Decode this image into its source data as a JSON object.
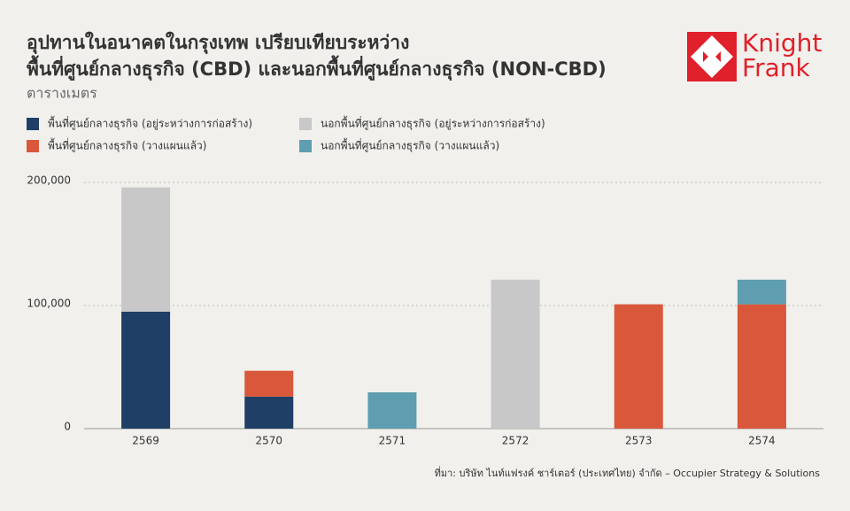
{
  "chart_data": {
    "type": "stacked_bar",
    "title": [
      "อุปทานในอนาคตในกรุงเทพ เปรียบเทียบระหว่าง",
      "พื้นที่ศูนย์กลางธุรกิจ (CBD) และนอกพื้นที่ศูนย์กลางธุรกิจ (NON-CBD)"
    ],
    "subtitle": "ตารางเมตร",
    "brand": [
      "Knight",
      "Frank"
    ],
    "source": "ที่มา: บริษัท ไนท์แฟรงค์ ชาร์เตอร์ (ประเทศไทย) จำกัด – Occupier Strategy & Solutions",
    "categories": [
      "2569",
      "2570",
      "2571",
      "2572",
      "2573",
      "2574"
    ],
    "series": [
      {
        "name": "พื้นที่ศูนย์กลางธุรกิจ (อยู่ระหว่างการก่อสร้าง)",
        "color": "#1f3f66",
        "values": [
          95000,
          26000,
          0,
          0,
          0,
          0
        ]
      },
      {
        "name": "นอกพื้นที่ศูนย์กลางธุรกิจ (อยู่ระหว่างการก่อสร้าง)",
        "color": "#c8c8c8",
        "values": [
          101000,
          0,
          0,
          121000,
          0,
          0
        ]
      },
      {
        "name": "พื้นที่ศูนย์กลางธุรกิจ (วางแผนแล้ว)",
        "color": "#d9573b",
        "values": [
          0,
          21000,
          0,
          0,
          101000,
          101000
        ]
      },
      {
        "name": "นอกพื้นที่ศูนย์กลางธุรกิจ (วางแผนแล้ว)",
        "color": "#5f9eb0",
        "values": [
          0,
          0,
          29500,
          0,
          0,
          20000
        ]
      }
    ],
    "stack_order": [
      0,
      2,
      1,
      3
    ],
    "ylim": [
      0,
      200000
    ],
    "yticks": [
      0,
      {
        "value": 100000,
        "label": "100,000"
      },
      {
        "value": 200000,
        "label": "200,000"
      }
    ],
    "grid": true
  }
}
